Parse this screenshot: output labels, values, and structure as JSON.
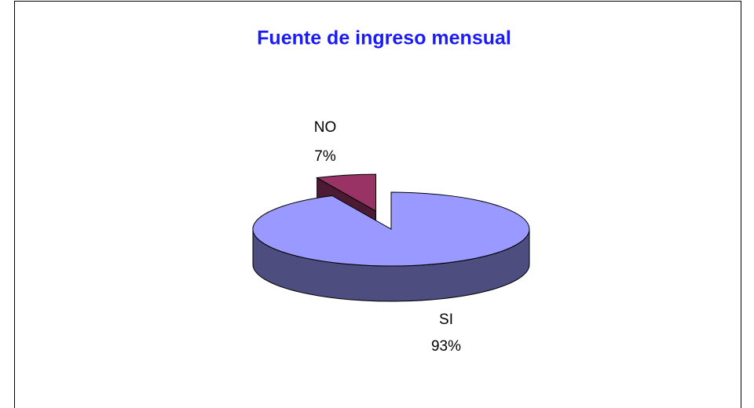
{
  "chart_data": {
    "type": "pie",
    "title": "Fuente de ingreso mensual",
    "categories": [
      "NO",
      "SI"
    ],
    "values": [
      7,
      93
    ],
    "value_labels": [
      "7%",
      "93%"
    ],
    "colors": [
      "#993366",
      "#9999ff"
    ],
    "three_d": true,
    "exploded": [
      true,
      false
    ]
  }
}
